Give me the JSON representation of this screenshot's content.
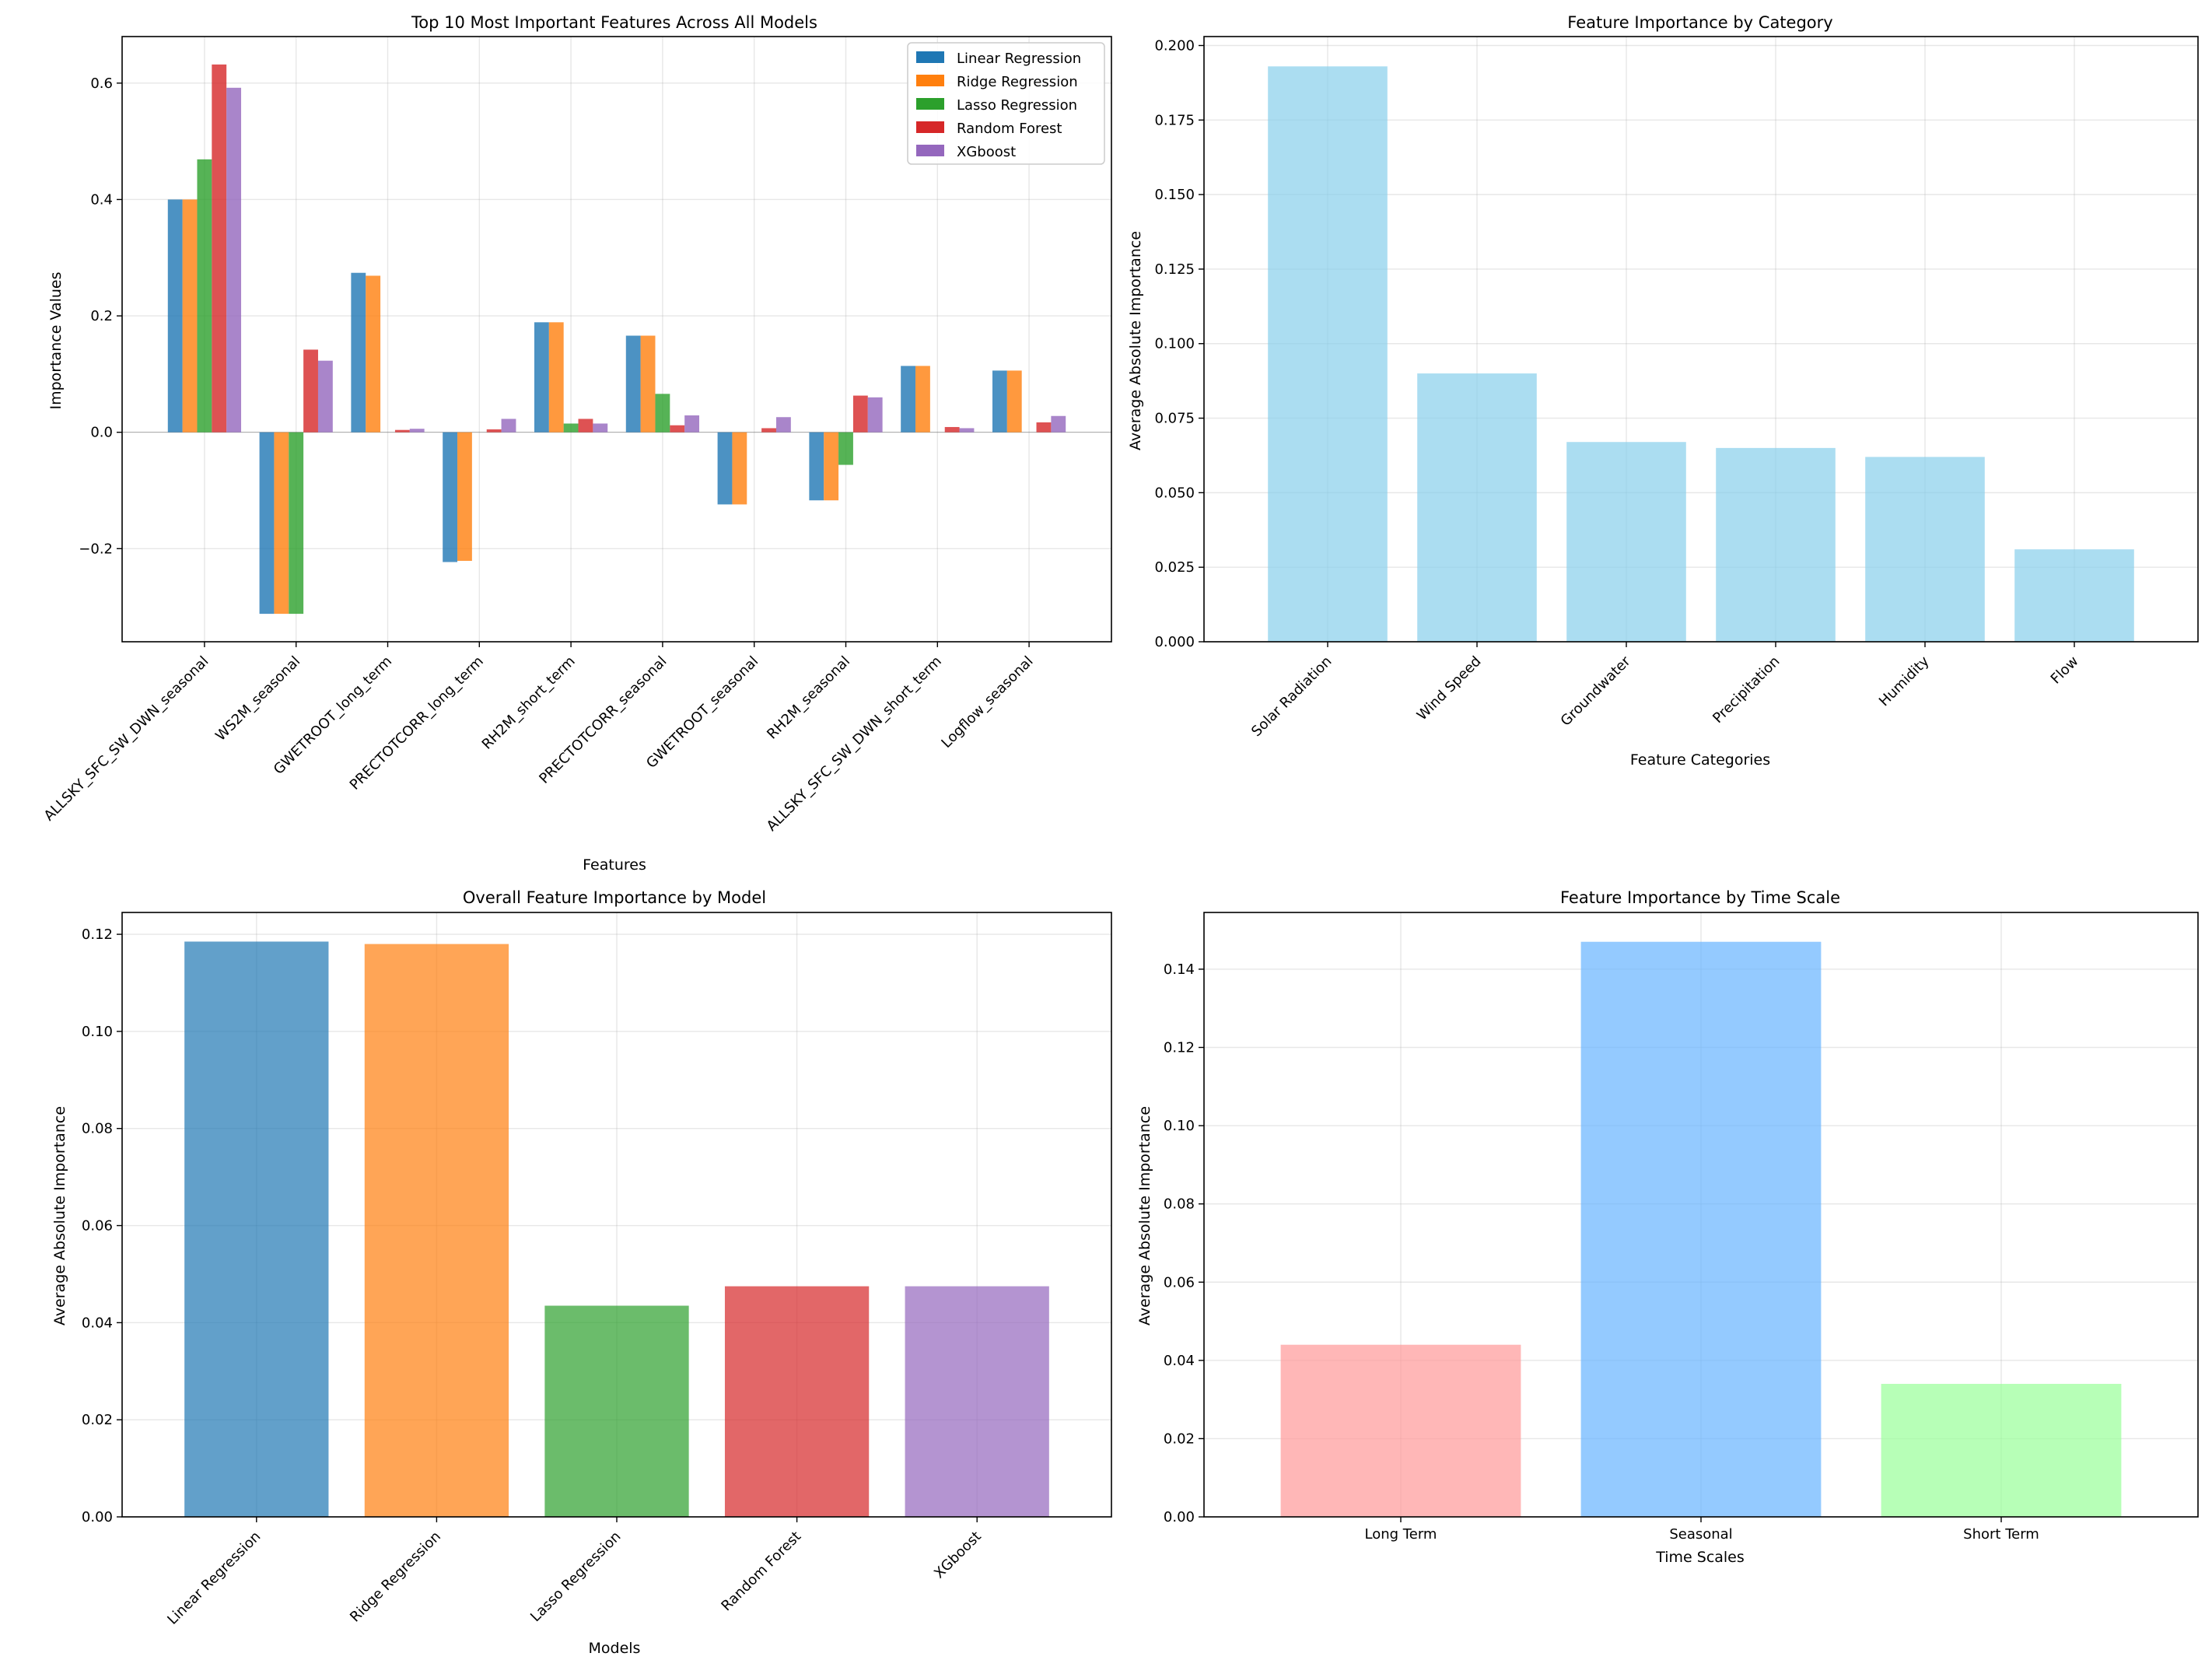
{
  "chart_data": [
    {
      "id": "top10",
      "type": "bar",
      "title": "Top 10 Most Important Features Across All Models",
      "xlabel": "Features",
      "ylabel": "Importance Values",
      "ylim": [
        -0.36,
        0.68
      ],
      "yticks": [
        -0.2,
        0.0,
        0.2,
        0.4,
        0.6
      ],
      "ytick_labels": [
        "−0.2",
        "0.0",
        "0.2",
        "0.4",
        "0.6"
      ],
      "grid": true,
      "legend": "top-right",
      "categories": [
        "ALLSKY_SFC_SW_DWN_seasonal",
        "WS2M_seasonal",
        "GWETROOT_long_term",
        "PRECTOTCORR_long_term",
        "RH2M_short_term",
        "PRECTOTCORR_seasonal",
        "GWETROOT_seasonal",
        "RH2M_seasonal",
        "ALLSKY_SFC_SW_DWN_short_term",
        "Logflow_seasonal"
      ],
      "series": [
        {
          "name": "Linear Regression",
          "color": "#1f77b4",
          "values": [
            0.4,
            -0.312,
            0.274,
            -0.223,
            0.189,
            0.166,
            -0.124,
            -0.117,
            0.114,
            0.106
          ]
        },
        {
          "name": "Ridge Regression",
          "color": "#ff7f0e",
          "values": [
            0.4,
            -0.312,
            0.269,
            -0.221,
            0.189,
            0.166,
            -0.124,
            -0.117,
            0.114,
            0.106
          ]
        },
        {
          "name": "Lasso Regression",
          "color": "#2ca02c",
          "values": [
            0.469,
            -0.312,
            0.0,
            0.0,
            0.015,
            0.066,
            0.0,
            -0.056,
            0.0,
            0.0
          ]
        },
        {
          "name": "Random Forest",
          "color": "#d62728",
          "values": [
            0.632,
            0.142,
            0.004,
            0.005,
            0.023,
            0.012,
            0.007,
            0.063,
            0.009,
            0.017
          ]
        },
        {
          "name": "XGboost",
          "color": "#9467bd",
          "values": [
            0.592,
            0.123,
            0.006,
            0.023,
            0.015,
            0.029,
            0.026,
            0.06,
            0.007,
            0.028
          ]
        }
      ]
    },
    {
      "id": "category",
      "type": "bar",
      "title": "Feature Importance by Category",
      "xlabel": "Feature Categories",
      "ylabel": "Average Absolute Importance",
      "ylim": [
        0,
        0.203
      ],
      "yticks": [
        0.0,
        0.025,
        0.05,
        0.075,
        0.1,
        0.125,
        0.15,
        0.175,
        0.2
      ],
      "ytick_labels": [
        "0.000",
        "0.025",
        "0.050",
        "0.075",
        "0.100",
        "0.125",
        "0.150",
        "0.175",
        "0.200"
      ],
      "grid": true,
      "color": "#87ceeb",
      "categories": [
        "Solar Radiation",
        "Wind Speed",
        "Groundwater",
        "Precipitation",
        "Humidity",
        "Flow"
      ],
      "values": [
        0.193,
        0.09,
        0.067,
        0.065,
        0.062,
        0.031
      ]
    },
    {
      "id": "model",
      "type": "bar",
      "title": "Overall Feature Importance by Model",
      "xlabel": "Models",
      "ylabel": "Average Absolute Importance",
      "ylim": [
        0,
        0.1245
      ],
      "yticks": [
        0.0,
        0.02,
        0.04,
        0.06,
        0.08,
        0.1,
        0.12
      ],
      "ytick_labels": [
        "0.00",
        "0.02",
        "0.04",
        "0.06",
        "0.08",
        "0.10",
        "0.12"
      ],
      "grid": true,
      "categories": [
        "Linear Regression",
        "Ridge Regression",
        "Lasso Regression",
        "Random Forest",
        "XGboost"
      ],
      "colors": [
        "#1f77b4",
        "#ff7f0e",
        "#2ca02c",
        "#d62728",
        "#9467bd"
      ],
      "values": [
        0.1185,
        0.118,
        0.0435,
        0.0475,
        0.0475
      ]
    },
    {
      "id": "timescale",
      "type": "bar",
      "title": "Feature Importance by Time Scale",
      "xlabel": "Time Scales",
      "ylabel": "Average Absolute Importance",
      "ylim": [
        0,
        0.1545
      ],
      "yticks": [
        0.0,
        0.02,
        0.04,
        0.06,
        0.08,
        0.1,
        0.12,
        0.14
      ],
      "ytick_labels": [
        "0.00",
        "0.02",
        "0.04",
        "0.06",
        "0.08",
        "0.10",
        "0.12",
        "0.14"
      ],
      "grid": true,
      "categories": [
        "Long Term",
        "Seasonal",
        "Short Term"
      ],
      "colors": [
        "#ff9999",
        "#66b3ff",
        "#99ff99"
      ],
      "values": [
        0.044,
        0.147,
        0.034
      ]
    }
  ]
}
